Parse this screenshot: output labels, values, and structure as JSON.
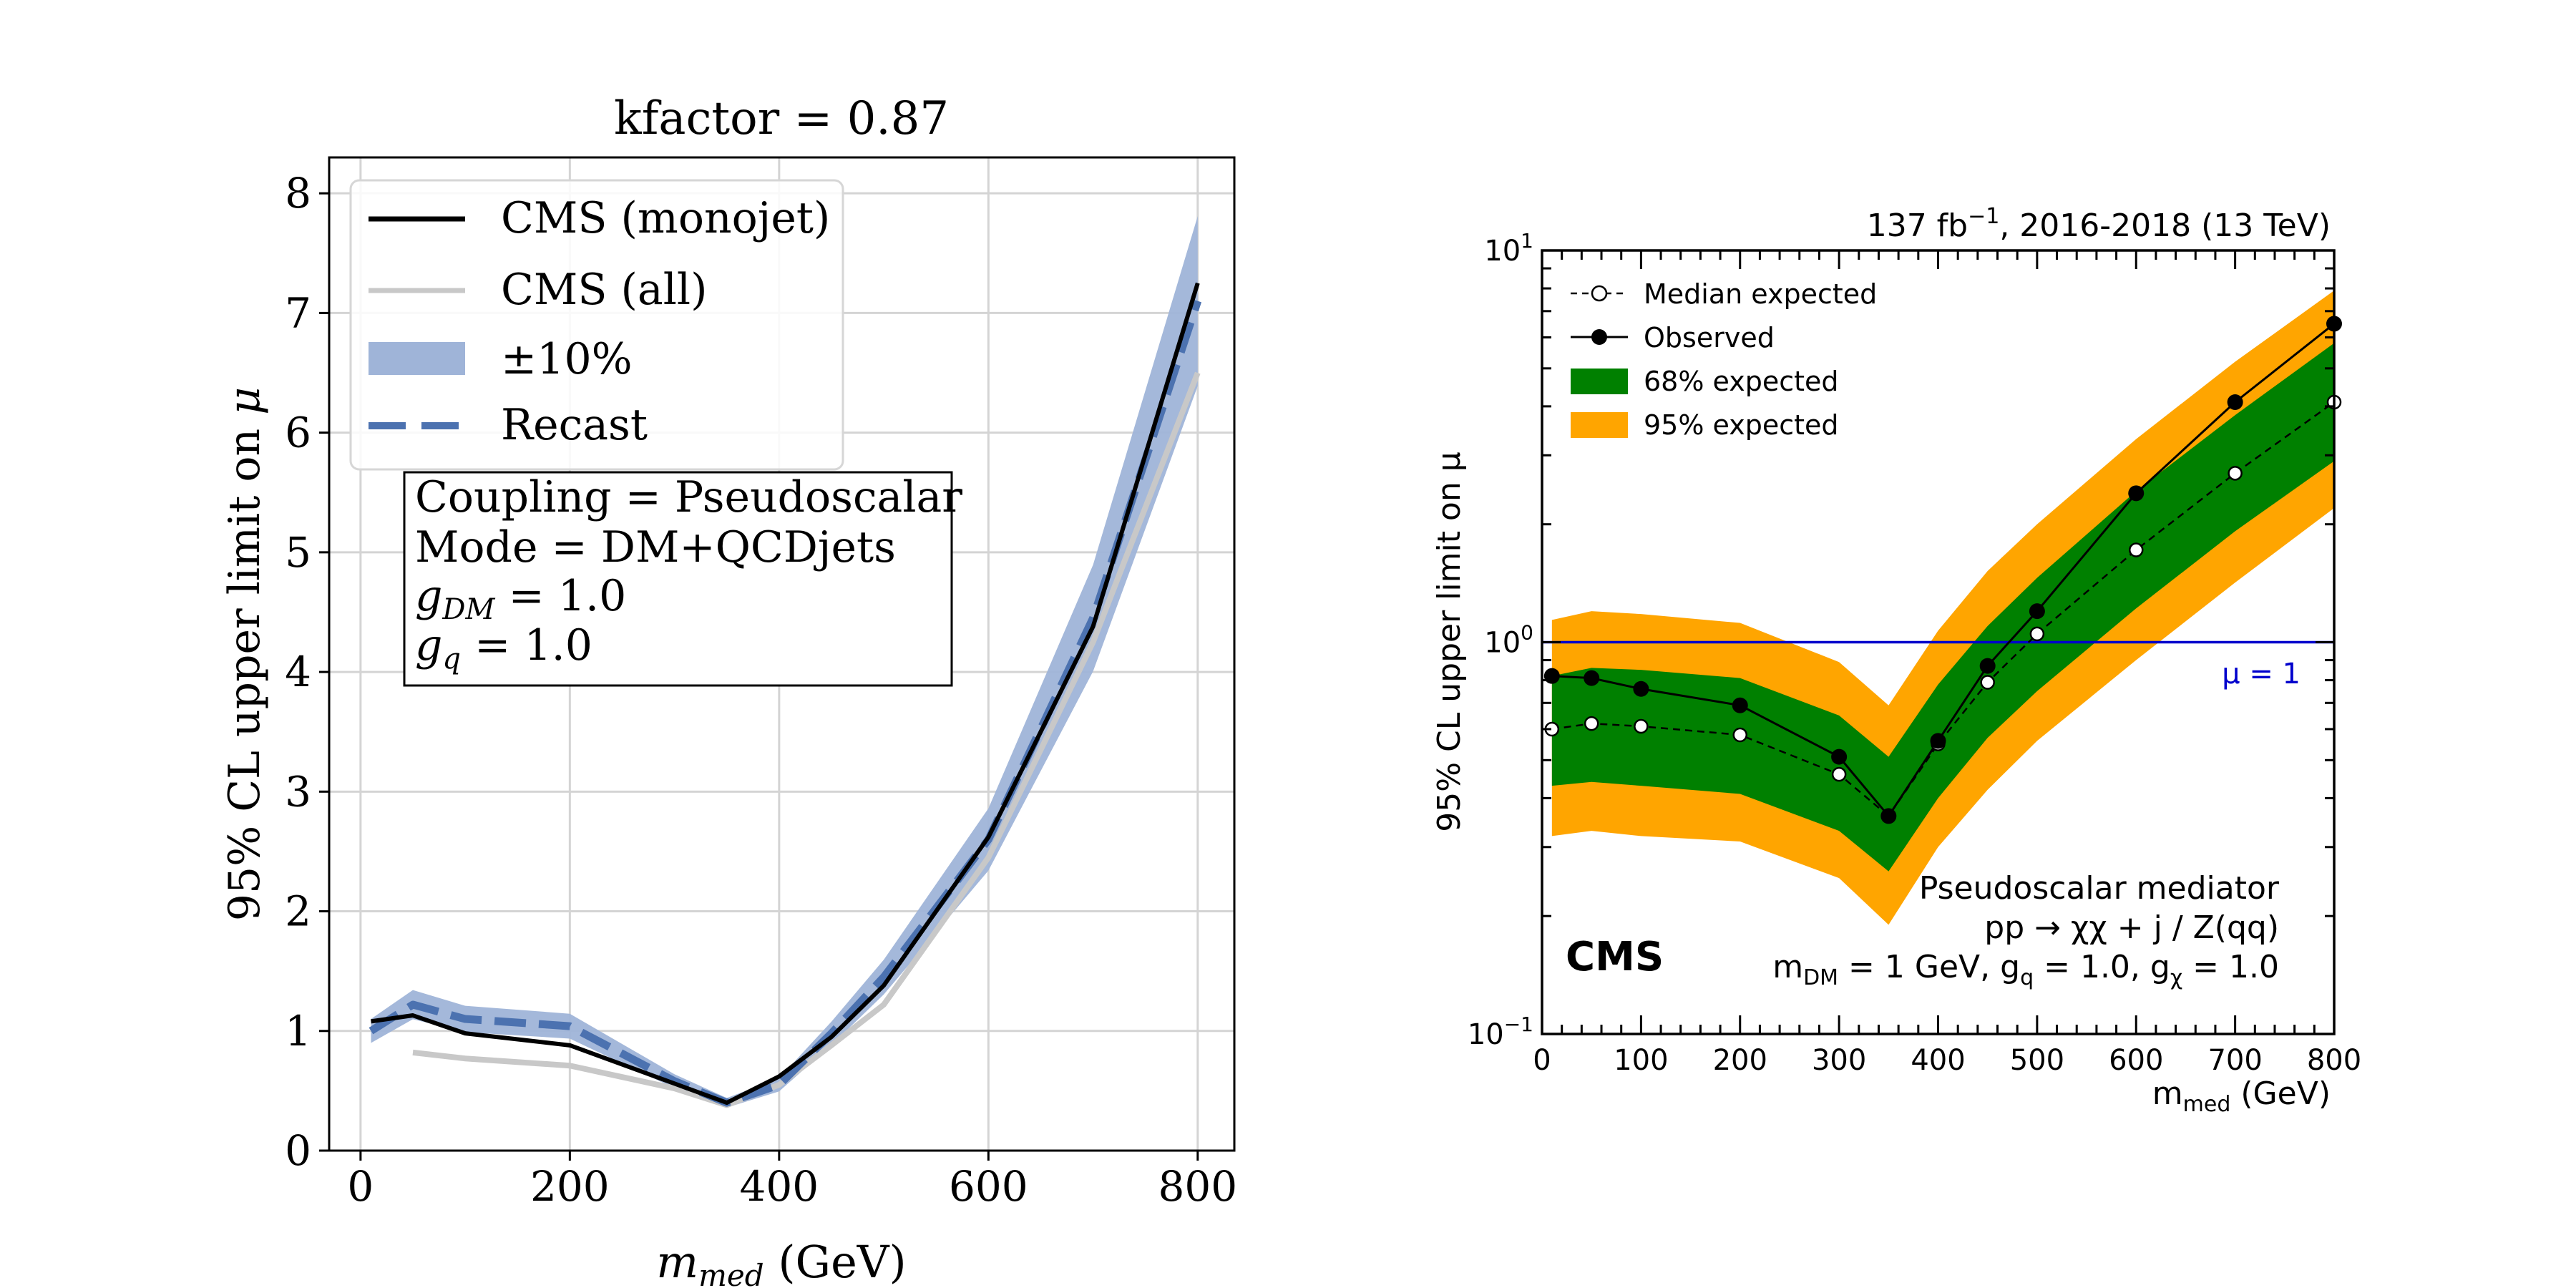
{
  "charts": [
    {
      "type": "line",
      "title": "kfactor = 0.87",
      "ylabel_main": "95% CL upper limit on ",
      "ylabel_sym": "μ",
      "xlabel_sym": "m",
      "xlabel_sub": "med",
      "xlabel_unit": " (GeV)",
      "xlim": [
        -30,
        835
      ],
      "ylim": [
        0,
        8.3
      ],
      "xticks": [
        "0",
        "200",
        "400",
        "600",
        "800"
      ],
      "yticks": [
        "0",
        "1",
        "2",
        "3",
        "4",
        "5",
        "6",
        "7",
        "8"
      ],
      "grid": true,
      "legend_position": "top-left",
      "legend": [
        {
          "label": "CMS (monojet)",
          "style": "black"
        },
        {
          "label": "CMS (all)",
          "style": "gray"
        },
        {
          "label": "±10%",
          "style": "band"
        },
        {
          "label": "Recast",
          "style": "dash"
        }
      ],
      "annotation_lines": [
        {
          "main": "Coupling = Pseudoscalar"
        },
        {
          "main": "Mode = DM+QCDjets"
        },
        {
          "main": "g",
          "sub": "DM",
          "rest": " = 1.0"
        },
        {
          "main": "g",
          "sub": "q",
          "rest": " = 1.0"
        }
      ],
      "colors": {
        "monojet": "#000000",
        "all": "#c8c8c8",
        "band": "#9fb4d8",
        "recast": "#4c72b0"
      },
      "series": [
        {
          "name": "CMS (monojet)",
          "x": [
            10,
            50,
            100,
            200,
            300,
            350,
            400,
            450,
            500,
            600,
            700,
            800
          ],
          "y": [
            1.08,
            1.13,
            0.98,
            0.88,
            0.56,
            0.4,
            0.62,
            0.95,
            1.38,
            2.62,
            4.38,
            7.25
          ]
        },
        {
          "name": "CMS (all)",
          "x": [
            50,
            100,
            200,
            300,
            350,
            400,
            450,
            500,
            600,
            700,
            800
          ],
          "y": [
            0.82,
            0.77,
            0.71,
            0.52,
            0.38,
            0.55,
            0.88,
            1.22,
            2.45,
            4.25,
            6.5
          ]
        },
        {
          "name": "Recast",
          "x": [
            10,
            50,
            100,
            200,
            300,
            350,
            400,
            450,
            500,
            600,
            700,
            800
          ],
          "y": [
            1.0,
            1.22,
            1.1,
            1.04,
            0.58,
            0.4,
            0.55,
            0.98,
            1.45,
            2.6,
            4.45,
            7.1
          ]
        }
      ]
    },
    {
      "type": "line",
      "lumi_pre": "137 fb",
      "lumi_sup": "−1",
      "lumi_post": ", 2016-2018 (13 TeV)",
      "ylabel": "95% CL upper limit on μ",
      "xlabel_main": "m",
      "xlabel_sub": "med",
      "xlabel_unit": " (GeV)",
      "yscale": "log",
      "xlim": [
        0,
        800
      ],
      "ylim": [
        0.1,
        10
      ],
      "xticks": [
        "0",
        "100",
        "200",
        "300",
        "400",
        "500",
        "600",
        "700",
        "800"
      ],
      "yticks": [
        {
          "base": "10",
          "exp": "−1"
        },
        {
          "base": "10",
          "exp": "0"
        },
        {
          "base": "10",
          "exp": "1"
        }
      ],
      "legend_position": "top-left",
      "legend": [
        {
          "label": "Median expected",
          "style": "open"
        },
        {
          "label": "Observed",
          "style": "filled"
        },
        {
          "label": "68% expected",
          "style": "green"
        },
        {
          "label": "95% expected",
          "style": "orange"
        }
      ],
      "reference_label": "μ = 1",
      "reference_value": 1,
      "experiment_label": "CMS",
      "info_line1": "Pseudoscalar mediator",
      "info_line2": "pp → χχ + j / Z(qq)",
      "info_line3": {
        "a": "m",
        "a_sub": "DM",
        "b": " = 1 GeV, g",
        "b_sub": "q",
        "c": " = 1.0, g",
        "c_sub": "χ",
        "d": " = 1.0"
      },
      "colors": {
        "green": "#008000",
        "orange": "#ffa500",
        "reference": "#0000cc",
        "marker": "#000000"
      },
      "x": [
        10,
        50,
        100,
        200,
        300,
        350,
        400,
        450,
        500,
        600,
        700,
        800
      ],
      "series": [
        {
          "name": "Observed",
          "y": [
            0.82,
            0.81,
            0.76,
            0.69,
            0.51,
            0.36,
            0.56,
            0.87,
            1.2,
            2.4,
            4.1,
            6.5
          ]
        },
        {
          "name": "Median expected",
          "y": [
            0.6,
            0.62,
            0.61,
            0.58,
            0.46,
            0.36,
            0.55,
            0.79,
            1.05,
            1.72,
            2.7,
            4.1
          ]
        },
        {
          "name": "68% expected",
          "lower": [
            0.43,
            0.44,
            0.43,
            0.41,
            0.33,
            0.26,
            0.4,
            0.57,
            0.75,
            1.22,
            1.92,
            2.9
          ],
          "upper": [
            0.82,
            0.86,
            0.85,
            0.81,
            0.65,
            0.51,
            0.78,
            1.1,
            1.46,
            2.43,
            3.8,
            5.8
          ]
        },
        {
          "name": "95% expected",
          "lower": [
            0.32,
            0.33,
            0.32,
            0.31,
            0.25,
            0.19,
            0.3,
            0.42,
            0.56,
            0.9,
            1.42,
            2.2
          ],
          "upper": [
            1.14,
            1.2,
            1.18,
            1.12,
            0.89,
            0.69,
            1.07,
            1.52,
            2.0,
            3.3,
            5.2,
            7.9
          ]
        }
      ]
    }
  ]
}
